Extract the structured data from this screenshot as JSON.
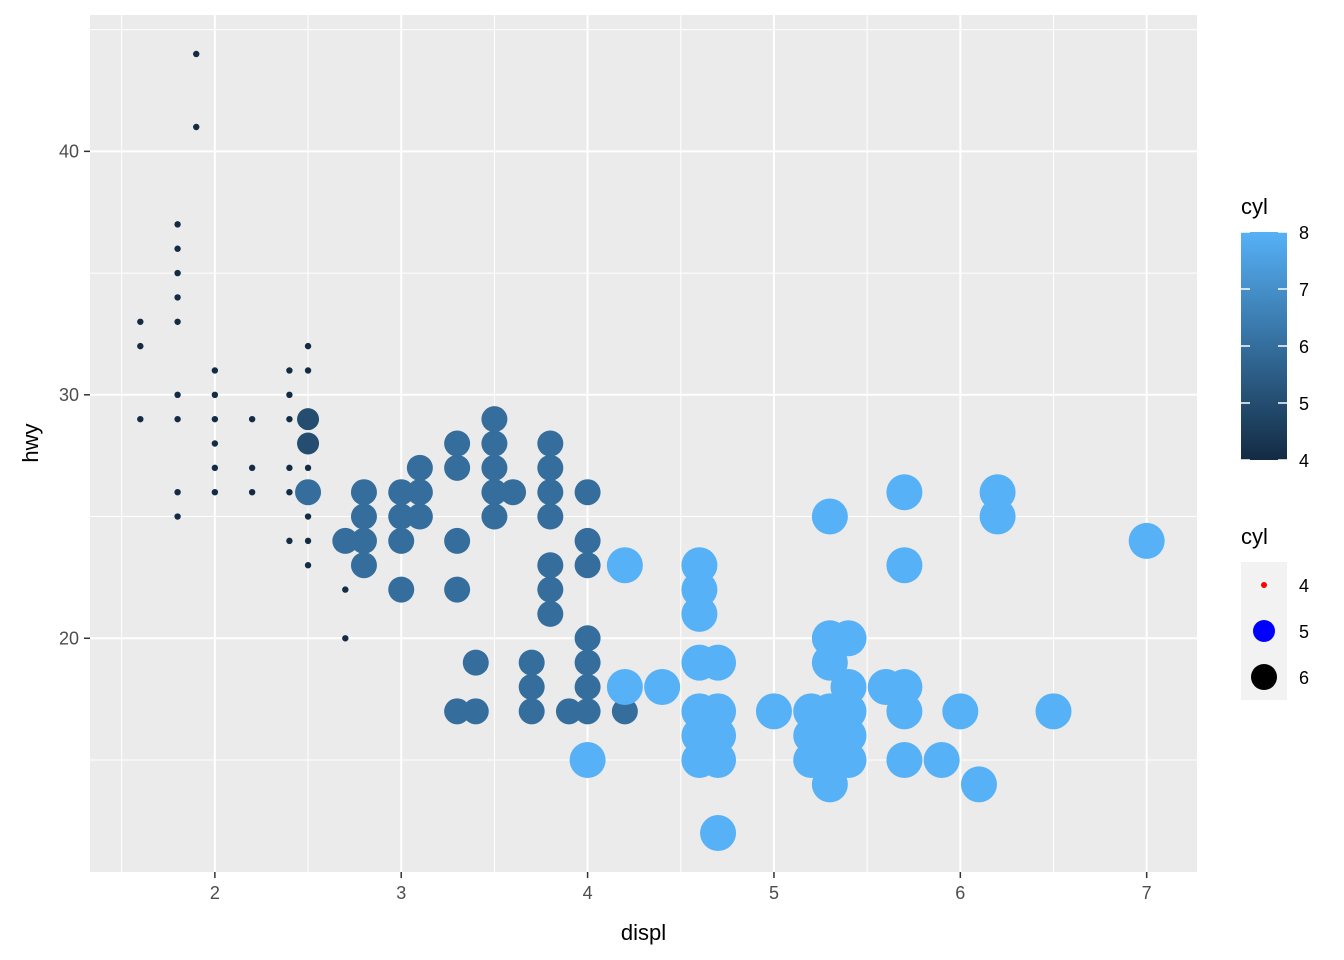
{
  "chart_data": {
    "type": "scatter",
    "title": "",
    "xlabel": "displ",
    "ylabel": "hwy",
    "xlim": [
      1.33,
      7.27
    ],
    "ylim": [
      10.4,
      45.6
    ],
    "x_ticks": [
      2,
      3,
      4,
      5,
      6,
      7
    ],
    "y_ticks": [
      20,
      30,
      40
    ],
    "grid": true,
    "legend_position": "right",
    "color_legend": {
      "title": "cyl",
      "type": "colorbar",
      "range": [
        4,
        8
      ],
      "ticks": [
        4,
        5,
        6,
        7,
        8
      ],
      "low_color": "#132B43",
      "high_color": "#56B1F7"
    },
    "size_legend": {
      "title": "cyl",
      "entries": [
        {
          "label": "4",
          "color": "#ff0000"
        },
        {
          "label": "5",
          "color": "#0000ff"
        },
        {
          "label": "6",
          "color": "#000000"
        }
      ]
    },
    "points": [
      [
        1.6,
        33,
        4
      ],
      [
        1.6,
        32,
        4
      ],
      [
        1.6,
        29,
        4
      ],
      [
        1.8,
        37,
        4
      ],
      [
        1.8,
        36,
        4
      ],
      [
        1.8,
        35,
        4
      ],
      [
        1.8,
        34,
        4
      ],
      [
        1.8,
        33,
        4
      ],
      [
        1.8,
        30,
        4
      ],
      [
        1.8,
        29,
        4
      ],
      [
        1.8,
        26,
        4
      ],
      [
        1.8,
        25,
        4
      ],
      [
        1.9,
        44,
        4
      ],
      [
        1.9,
        41,
        4
      ],
      [
        2.0,
        31,
        4
      ],
      [
        2.0,
        30,
        4
      ],
      [
        2.0,
        29,
        4
      ],
      [
        2.0,
        28,
        4
      ],
      [
        2.0,
        27,
        4
      ],
      [
        2.0,
        26,
        4
      ],
      [
        2.2,
        29,
        4
      ],
      [
        2.2,
        27,
        4
      ],
      [
        2.2,
        26,
        4
      ],
      [
        2.4,
        31,
        4
      ],
      [
        2.4,
        30,
        4
      ],
      [
        2.4,
        29,
        4
      ],
      [
        2.4,
        27,
        4
      ],
      [
        2.4,
        26,
        4
      ],
      [
        2.4,
        24,
        4
      ],
      [
        2.5,
        32,
        4
      ],
      [
        2.5,
        31,
        4
      ],
      [
        2.5,
        29,
        4
      ],
      [
        2.5,
        27,
        4
      ],
      [
        2.5,
        26,
        4
      ],
      [
        2.5,
        25,
        4
      ],
      [
        2.5,
        24,
        4
      ],
      [
        2.5,
        23,
        4
      ],
      [
        2.5,
        29,
        5
      ],
      [
        2.5,
        28,
        5
      ],
      [
        2.5,
        26,
        6
      ],
      [
        2.7,
        22,
        4
      ],
      [
        2.7,
        20,
        4
      ],
      [
        2.7,
        24,
        6
      ],
      [
        2.8,
        26,
        6
      ],
      [
        2.8,
        25,
        6
      ],
      [
        2.8,
        24,
        6
      ],
      [
        2.8,
        23,
        6
      ],
      [
        3.0,
        26,
        6
      ],
      [
        3.0,
        25,
        6
      ],
      [
        3.0,
        24,
        6
      ],
      [
        3.0,
        22,
        6
      ],
      [
        3.1,
        27,
        6
      ],
      [
        3.1,
        26,
        6
      ],
      [
        3.1,
        25,
        6
      ],
      [
        3.3,
        28,
        6
      ],
      [
        3.3,
        27,
        6
      ],
      [
        3.3,
        24,
        6
      ],
      [
        3.3,
        22,
        6
      ],
      [
        3.3,
        17,
        6
      ],
      [
        3.4,
        19,
        6
      ],
      [
        3.4,
        17,
        6
      ],
      [
        3.5,
        29,
        6
      ],
      [
        3.5,
        28,
        6
      ],
      [
        3.5,
        27,
        6
      ],
      [
        3.5,
        26,
        6
      ],
      [
        3.5,
        25,
        6
      ],
      [
        3.6,
        26,
        6
      ],
      [
        3.7,
        19,
        6
      ],
      [
        3.7,
        18,
        6
      ],
      [
        3.7,
        17,
        6
      ],
      [
        3.8,
        28,
        6
      ],
      [
        3.8,
        27,
        6
      ],
      [
        3.8,
        26,
        6
      ],
      [
        3.8,
        25,
        6
      ],
      [
        3.8,
        23,
        6
      ],
      [
        3.8,
        22,
        6
      ],
      [
        3.8,
        21,
        6
      ],
      [
        3.9,
        17,
        6
      ],
      [
        4.0,
        26,
        6
      ],
      [
        4.0,
        24,
        6
      ],
      [
        4.0,
        23,
        6
      ],
      [
        4.0,
        20,
        6
      ],
      [
        4.0,
        19,
        6
      ],
      [
        4.0,
        18,
        6
      ],
      [
        4.0,
        17,
        6
      ],
      [
        4.2,
        17,
        6
      ],
      [
        4.0,
        15,
        8
      ],
      [
        4.2,
        23,
        8
      ],
      [
        4.2,
        18,
        8
      ],
      [
        4.4,
        18,
        8
      ],
      [
        4.6,
        23,
        8
      ],
      [
        4.6,
        22,
        8
      ],
      [
        4.6,
        21,
        8
      ],
      [
        4.6,
        19,
        8
      ],
      [
        4.6,
        17,
        8
      ],
      [
        4.6,
        16,
        8
      ],
      [
        4.6,
        15,
        8
      ],
      [
        4.7,
        19,
        8
      ],
      [
        4.7,
        17,
        8
      ],
      [
        4.7,
        16,
        8
      ],
      [
        4.7,
        15,
        8
      ],
      [
        4.7,
        12,
        8
      ],
      [
        5.0,
        17,
        8
      ],
      [
        5.2,
        17,
        8
      ],
      [
        5.2,
        16,
        8
      ],
      [
        5.2,
        15,
        8
      ],
      [
        5.3,
        25,
        8
      ],
      [
        5.3,
        20,
        8
      ],
      [
        5.3,
        19,
        8
      ],
      [
        5.3,
        17,
        8
      ],
      [
        5.3,
        16,
        8
      ],
      [
        5.3,
        15,
        8
      ],
      [
        5.3,
        14,
        8
      ],
      [
        5.4,
        20,
        8
      ],
      [
        5.4,
        18,
        8
      ],
      [
        5.4,
        17,
        8
      ],
      [
        5.4,
        16,
        8
      ],
      [
        5.4,
        15,
        8
      ],
      [
        5.6,
        18,
        8
      ],
      [
        5.7,
        26,
        8
      ],
      [
        5.7,
        23,
        8
      ],
      [
        5.7,
        18,
        8
      ],
      [
        5.7,
        17,
        8
      ],
      [
        5.7,
        15,
        8
      ],
      [
        5.9,
        15,
        8
      ],
      [
        6.0,
        17,
        8
      ],
      [
        6.1,
        14,
        8
      ],
      [
        6.2,
        26,
        8
      ],
      [
        6.2,
        25,
        8
      ],
      [
        6.5,
        17,
        8
      ],
      [
        7.0,
        24,
        8
      ]
    ]
  }
}
